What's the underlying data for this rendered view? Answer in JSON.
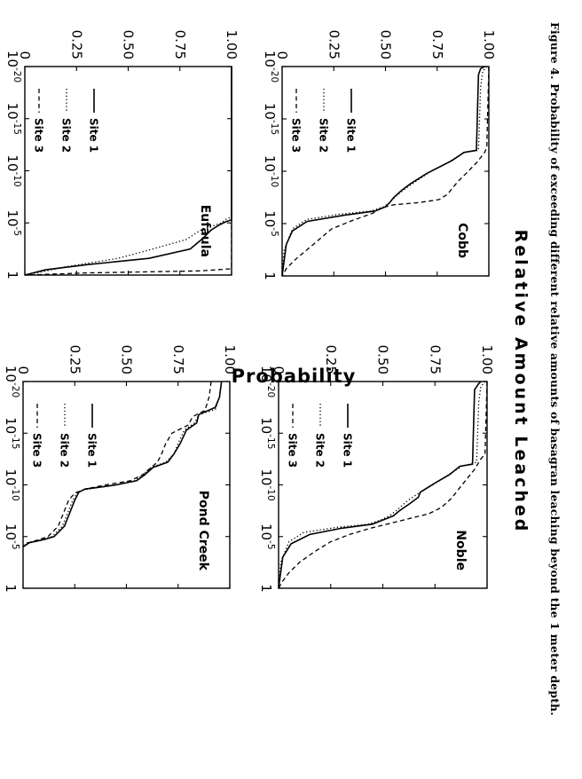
{
  "figure": {
    "caption": "Figure 4. Probability of exceeding different relative amounts of basagran leaching beyond the 1 meter depth.",
    "xlabel": "Relative Amount Leached",
    "ylabel": "Probability"
  },
  "chart_data": [
    {
      "type": "line",
      "title": "Cobb",
      "x_scale": "log",
      "xlim": [
        "1e-20",
        "1"
      ],
      "x_ticks": [
        {
          "base": "10",
          "exp": "-20"
        },
        {
          "base": "10",
          "exp": "-15"
        },
        {
          "base": "10",
          "exp": "-10"
        },
        {
          "base": "10",
          "exp": "-5"
        },
        {
          "base": "1",
          "exp": ""
        }
      ],
      "ylim": [
        0,
        1
      ],
      "y_ticks": [
        "0",
        "0.25",
        "0.50",
        "0.75",
        "1.00"
      ],
      "legend": "left",
      "series": [
        {
          "name": "Site 1",
          "style": "solid",
          "points": [
            [
              -20,
              0.98
            ],
            [
              -19.8,
              0.96
            ],
            [
              -19.2,
              0.95
            ],
            [
              -12,
              0.94
            ],
            [
              -11.8,
              0.88
            ],
            [
              -11,
              0.82
            ],
            [
              -10.5,
              0.77
            ],
            [
              -9.8,
              0.7
            ],
            [
              -9.3,
              0.66
            ],
            [
              -8.8,
              0.62
            ],
            [
              -8.2,
              0.58
            ],
            [
              -7.5,
              0.54
            ],
            [
              -7,
              0.52
            ],
            [
              -6.6,
              0.5
            ],
            [
              -6.2,
              0.45
            ],
            [
              -5.8,
              0.3
            ],
            [
              -5.2,
              0.12
            ],
            [
              -4.3,
              0.05
            ],
            [
              -3,
              0.02
            ],
            [
              0,
              0.0
            ]
          ]
        },
        {
          "name": "Site 2",
          "style": "dotted",
          "points": [
            [
              -20,
              0.99
            ],
            [
              -19.5,
              0.97
            ],
            [
              -18,
              0.96
            ],
            [
              -12,
              0.95
            ],
            [
              -11.8,
              0.88
            ],
            [
              -10.8,
              0.8
            ],
            [
              -10,
              0.72
            ],
            [
              -9.2,
              0.66
            ],
            [
              -8.4,
              0.6
            ],
            [
              -7.6,
              0.55
            ],
            [
              -7,
              0.52
            ],
            [
              -6.6,
              0.49
            ],
            [
              -6.2,
              0.43
            ],
            [
              -5.9,
              0.28
            ],
            [
              -5.4,
              0.12
            ],
            [
              -4.5,
              0.05
            ],
            [
              -2.5,
              0.01
            ],
            [
              0,
              0.0
            ]
          ]
        },
        {
          "name": "Site 3",
          "style": "dashed",
          "points": [
            [
              -20,
              1.0
            ],
            [
              -12.3,
              0.99
            ],
            [
              -11.8,
              0.98
            ],
            [
              -10.8,
              0.94
            ],
            [
              -9.8,
              0.89
            ],
            [
              -9,
              0.85
            ],
            [
              -8.3,
              0.82
            ],
            [
              -7.8,
              0.8
            ],
            [
              -7.3,
              0.76
            ],
            [
              -7,
              0.66
            ],
            [
              -6.8,
              0.54
            ],
            [
              -6.5,
              0.48
            ],
            [
              -6,
              0.44
            ],
            [
              -5.3,
              0.34
            ],
            [
              -4.5,
              0.24
            ],
            [
              -3.5,
              0.18
            ],
            [
              -2.5,
              0.12
            ],
            [
              -1.5,
              0.06
            ],
            [
              -0.7,
              0.02
            ],
            [
              0,
              0.0
            ]
          ]
        }
      ]
    },
    {
      "type": "line",
      "title": "Eufaula",
      "x_scale": "log",
      "xlim": [
        "1e-20",
        "1"
      ],
      "x_ticks": [
        {
          "base": "10",
          "exp": "-20"
        },
        {
          "base": "10",
          "exp": "-15"
        },
        {
          "base": "10",
          "exp": "-10"
        },
        {
          "base": "10",
          "exp": "-5"
        },
        {
          "base": "1",
          "exp": ""
        }
      ],
      "ylim": [
        0,
        1
      ],
      "y_ticks": [
        "0",
        "0.25",
        "0.50",
        "0.75",
        "1.00"
      ],
      "legend": "left",
      "series": [
        {
          "name": "Site 1",
          "style": "solid",
          "points": [
            [
              -20,
              1.0
            ],
            [
              -5.3,
              1.0
            ],
            [
              -5.1,
              0.97
            ],
            [
              -4.8,
              0.94
            ],
            [
              -4.3,
              0.9
            ],
            [
              -3.5,
              0.86
            ],
            [
              -2.5,
              0.8
            ],
            [
              -1.6,
              0.6
            ],
            [
              -1,
              0.3
            ],
            [
              -0.5,
              0.1
            ],
            [
              0,
              0.0
            ]
          ]
        },
        {
          "name": "Site 2",
          "style": "dotted",
          "points": [
            [
              -20,
              1.0
            ],
            [
              -5.6,
              1.0
            ],
            [
              -5.3,
              0.97
            ],
            [
              -5,
              0.95
            ],
            [
              -4.3,
              0.85
            ],
            [
              -3.4,
              0.78
            ],
            [
              -2.4,
              0.6
            ],
            [
              -1.6,
              0.45
            ],
            [
              -0.8,
              0.2
            ],
            [
              -0.3,
              0.08
            ],
            [
              0,
              0.0
            ]
          ]
        },
        {
          "name": "Site 3",
          "style": "dashed",
          "points": [
            [
              -20,
              1.0
            ],
            [
              -0.6,
              1.0
            ],
            [
              -0.4,
              0.85
            ],
            [
              -0.2,
              0.3
            ],
            [
              0,
              0.0
            ]
          ]
        }
      ]
    },
    {
      "type": "line",
      "title": "Noble",
      "x_scale": "log",
      "xlim": [
        "1e-20",
        "1"
      ],
      "x_ticks": [
        {
          "base": "10",
          "exp": "-20"
        },
        {
          "base": "10",
          "exp": "-15"
        },
        {
          "base": "10",
          "exp": "-10"
        },
        {
          "base": "10",
          "exp": "-5"
        },
        {
          "base": "1",
          "exp": ""
        }
      ],
      "ylim": [
        0,
        1
      ],
      "y_ticks": [
        "0",
        "0.25",
        "0.50",
        "0.75",
        "1.00"
      ],
      "legend": "left",
      "series": [
        {
          "name": "Site 1",
          "style": "solid",
          "points": [
            [
              -20,
              0.97
            ],
            [
              -19.8,
              0.96
            ],
            [
              -19.2,
              0.94
            ],
            [
              -12,
              0.93
            ],
            [
              -11.8,
              0.87
            ],
            [
              -11,
              0.82
            ],
            [
              -10.3,
              0.76
            ],
            [
              -9.8,
              0.72
            ],
            [
              -9.3,
              0.68
            ],
            [
              -8.8,
              0.67
            ],
            [
              -8.2,
              0.63
            ],
            [
              -7.5,
              0.58
            ],
            [
              -7,
              0.55
            ],
            [
              -6.6,
              0.5
            ],
            [
              -6.2,
              0.45
            ],
            [
              -5.8,
              0.3
            ],
            [
              -5.2,
              0.15
            ],
            [
              -4.3,
              0.06
            ],
            [
              -3,
              0.02
            ],
            [
              0,
              0.0
            ]
          ]
        },
        {
          "name": "Site 2",
          "style": "dotted",
          "points": [
            [
              -20,
              0.99
            ],
            [
              -19.5,
              0.97
            ],
            [
              -18,
              0.96
            ],
            [
              -12.2,
              0.95
            ],
            [
              -11.8,
              0.88
            ],
            [
              -10.8,
              0.8
            ],
            [
              -10,
              0.74
            ],
            [
              -9.3,
              0.68
            ],
            [
              -8.5,
              0.62
            ],
            [
              -7.6,
              0.57
            ],
            [
              -7,
              0.53
            ],
            [
              -6.6,
              0.49
            ],
            [
              -6.2,
              0.43
            ],
            [
              -5.9,
              0.28
            ],
            [
              -5.4,
              0.12
            ],
            [
              -4.5,
              0.05
            ],
            [
              -2.5,
              0.01
            ],
            [
              0,
              0.0
            ]
          ]
        },
        {
          "name": "Site 3",
          "style": "dashed",
          "points": [
            [
              -20,
              1.0
            ],
            [
              -13,
              0.99
            ],
            [
              -12.5,
              0.97
            ],
            [
              -11.5,
              0.94
            ],
            [
              -10.5,
              0.9
            ],
            [
              -9.5,
              0.86
            ],
            [
              -8.7,
              0.83
            ],
            [
              -7.8,
              0.78
            ],
            [
              -7.2,
              0.72
            ],
            [
              -6.7,
              0.62
            ],
            [
              -6.3,
              0.54
            ],
            [
              -5.8,
              0.44
            ],
            [
              -5.2,
              0.34
            ],
            [
              -4.5,
              0.25
            ],
            [
              -3.5,
              0.17
            ],
            [
              -2.5,
              0.1
            ],
            [
              -1.5,
              0.05
            ],
            [
              -0.7,
              0.02
            ],
            [
              0,
              0.0
            ]
          ]
        }
      ]
    },
    {
      "type": "line",
      "title": "Pond Creek",
      "x_scale": "log",
      "xlim": [
        "1e-20",
        "1"
      ],
      "x_ticks": [
        {
          "base": "10",
          "exp": "-20"
        },
        {
          "base": "10",
          "exp": "-15"
        },
        {
          "base": "10",
          "exp": "-10"
        },
        {
          "base": "10",
          "exp": "-5"
        },
        {
          "base": "1",
          "exp": ""
        }
      ],
      "ylim": [
        0,
        1
      ],
      "y_ticks": [
        "0",
        "0.25",
        "0.50",
        "0.75",
        "1.00"
      ],
      "legend": "left",
      "series": [
        {
          "name": "Site 1",
          "style": "solid",
          "points": [
            [
              -20,
              0.96
            ],
            [
              -18.5,
              0.95
            ],
            [
              -17.5,
              0.93
            ],
            [
              -16.8,
              0.85
            ],
            [
              -16,
              0.84
            ],
            [
              -15.3,
              0.79
            ],
            [
              -14,
              0.76
            ],
            [
              -13,
              0.73
            ],
            [
              -12.2,
              0.7
            ],
            [
              -11.7,
              0.63
            ],
            [
              -11,
              0.59
            ],
            [
              -10.4,
              0.55
            ],
            [
              -10,
              0.45
            ],
            [
              -9.8,
              0.38
            ],
            [
              -9.6,
              0.3
            ],
            [
              -9.3,
              0.27
            ],
            [
              -8.5,
              0.25
            ],
            [
              -7.5,
              0.23
            ],
            [
              -6,
              0.2
            ],
            [
              -5,
              0.15
            ],
            [
              -4.7,
              0.1
            ],
            [
              -4.4,
              0.03
            ],
            [
              -4,
              0.0
            ]
          ]
        },
        {
          "name": "Site 2",
          "style": "dotted",
          "points": [
            [
              -20,
              0.96
            ],
            [
              -18.5,
              0.95
            ],
            [
              -17.3,
              0.93
            ],
            [
              -16.8,
              0.85
            ],
            [
              -16,
              0.83
            ],
            [
              -15.3,
              0.78
            ],
            [
              -14,
              0.75
            ],
            [
              -13,
              0.73
            ],
            [
              -12.2,
              0.69
            ],
            [
              -11.7,
              0.62
            ],
            [
              -11,
              0.58
            ],
            [
              -10.4,
              0.54
            ],
            [
              -10,
              0.45
            ],
            [
              -9.8,
              0.38
            ],
            [
              -9.5,
              0.29
            ],
            [
              -9.2,
              0.26
            ],
            [
              -8.5,
              0.24
            ],
            [
              -7.5,
              0.22
            ],
            [
              -6,
              0.19
            ],
            [
              -5,
              0.14
            ],
            [
              -4.7,
              0.09
            ],
            [
              -4.4,
              0.02
            ],
            [
              -4,
              0.0
            ]
          ]
        },
        {
          "name": "Site 3",
          "style": "dashed",
          "points": [
            [
              -20,
              0.91
            ],
            [
              -18.5,
              0.9
            ],
            [
              -17.2,
              0.88
            ],
            [
              -16.6,
              0.82
            ],
            [
              -15.8,
              0.8
            ],
            [
              -15,
              0.72
            ],
            [
              -14,
              0.69
            ],
            [
              -13,
              0.67
            ],
            [
              -12.2,
              0.65
            ],
            [
              -11.7,
              0.62
            ],
            [
              -11,
              0.58
            ],
            [
              -10.4,
              0.52
            ],
            [
              -10,
              0.4
            ],
            [
              -9.6,
              0.3
            ],
            [
              -9.2,
              0.25
            ],
            [
              -8.5,
              0.22
            ],
            [
              -7.5,
              0.2
            ],
            [
              -6,
              0.17
            ],
            [
              -5,
              0.12
            ],
            [
              -4.6,
              0.06
            ],
            [
              -4.3,
              0.01
            ],
            [
              -4,
              0.0
            ]
          ]
        }
      ]
    }
  ]
}
